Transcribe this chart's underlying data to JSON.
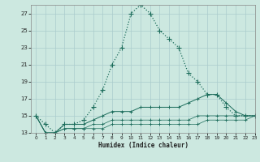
{
  "xlabel": "Humidex (Indice chaleur)",
  "bg_color": "#cce8e0",
  "grid_color": "#aacccc",
  "line_color": "#1a6b5a",
  "x_values": [
    0,
    1,
    2,
    3,
    4,
    5,
    6,
    7,
    8,
    9,
    10,
    11,
    12,
    13,
    14,
    15,
    16,
    17,
    18,
    19,
    20,
    21,
    22,
    23
  ],
  "series1": [
    15,
    14,
    13,
    14,
    14,
    14.5,
    16,
    18,
    21,
    23,
    27,
    28,
    27,
    25,
    24,
    23,
    20,
    19,
    17.5,
    17.5,
    16,
    15,
    15,
    15
  ],
  "series2": [
    15,
    13,
    13,
    14,
    14,
    14,
    14.5,
    15,
    15.5,
    15.5,
    15.5,
    16,
    16,
    16,
    16,
    16,
    16.5,
    17,
    17.5,
    17.5,
    16.5,
    15.5,
    15,
    15
  ],
  "series3": [
    15,
    13,
    13,
    13.5,
    13.5,
    13.5,
    14,
    14,
    14.5,
    14.5,
    14.5,
    14.5,
    14.5,
    14.5,
    14.5,
    14.5,
    14.5,
    15,
    15,
    15,
    15,
    15,
    15,
    15
  ],
  "series4": [
    15,
    13,
    13,
    13.5,
    13.5,
    13.5,
    13.5,
    13.5,
    14,
    14,
    14,
    14,
    14,
    14,
    14,
    14,
    14,
    14,
    14.5,
    14.5,
    14.5,
    14.5,
    14.5,
    15
  ],
  "ylim": [
    13,
    28
  ],
  "xlim": [
    -0.5,
    23
  ],
  "yticks": [
    13,
    15,
    17,
    19,
    21,
    23,
    25,
    27
  ],
  "xticks": [
    0,
    1,
    2,
    3,
    4,
    5,
    6,
    7,
    8,
    9,
    10,
    11,
    12,
    13,
    14,
    15,
    16,
    17,
    18,
    19,
    20,
    21,
    22,
    23
  ]
}
